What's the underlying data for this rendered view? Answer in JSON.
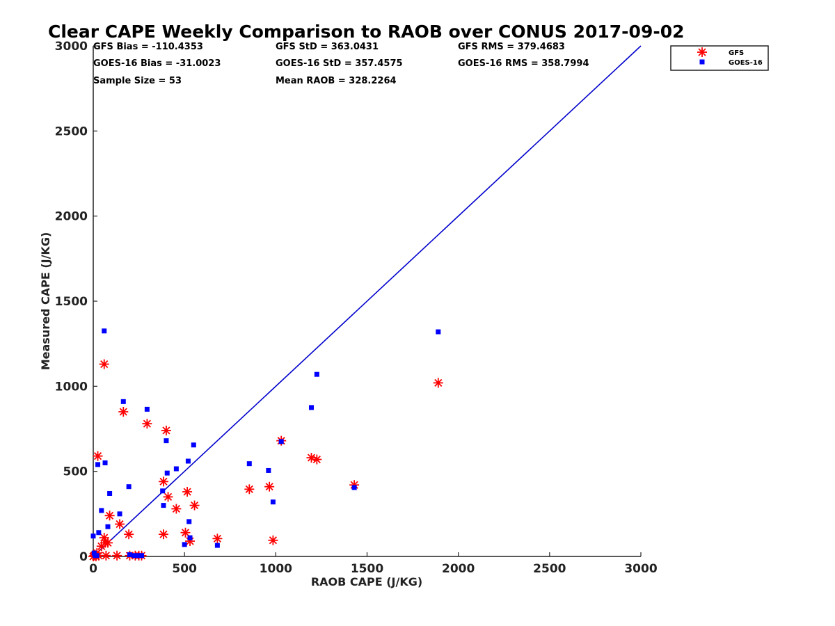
{
  "chart_data": {
    "type": "scatter",
    "title": "Clear CAPE Weekly Comparison to RAOB over CONUS 2017-09-02",
    "xlabel": "RAOB CAPE (J/KG)",
    "ylabel": "Measured CAPE (J/KG)",
    "xlim": [
      0,
      3000
    ],
    "ylim": [
      0,
      3000
    ],
    "xticks": [
      "0",
      "500",
      "1000",
      "1500",
      "2000",
      "2500",
      "3000"
    ],
    "yticks": [
      "0",
      "500",
      "1000",
      "1500",
      "2000",
      "2500",
      "3000"
    ],
    "grid": false,
    "legend_position": "top-right",
    "stats": [
      "GFS Bias = -110.4353",
      "GFS StD = 363.0431",
      "GFS RMS = 379.4683",
      "GOES-16 Bias = -31.0023",
      "GOES-16 StD = 357.4575",
      "GOES-16 RMS = 358.7994",
      "Sample Size = 53",
      "Mean RAOB = 328.2264"
    ],
    "reference_line": {
      "x": [
        0,
        3000
      ],
      "y": [
        0,
        3000
      ],
      "color": "#0000cc"
    },
    "series": [
      {
        "name": "GFS",
        "marker": "asterisk",
        "color": "#ff0000",
        "points": [
          [
            0,
            0
          ],
          [
            5,
            5
          ],
          [
            10,
            10
          ],
          [
            15,
            0
          ],
          [
            20,
            20
          ],
          [
            30,
            5
          ],
          [
            45,
            60
          ],
          [
            60,
            110
          ],
          [
            65,
            80
          ],
          [
            70,
            5
          ],
          [
            80,
            80
          ],
          [
            90,
            240
          ],
          [
            25,
            590
          ],
          [
            60,
            1130
          ],
          [
            130,
            5
          ],
          [
            145,
            190
          ],
          [
            165,
            850
          ],
          [
            195,
            130
          ],
          [
            200,
            5
          ],
          [
            230,
            5
          ],
          [
            250,
            5
          ],
          [
            265,
            5
          ],
          [
            295,
            780
          ],
          [
            385,
            440
          ],
          [
            385,
            130
          ],
          [
            400,
            740
          ],
          [
            410,
            350
          ],
          [
            455,
            280
          ],
          [
            505,
            140
          ],
          [
            515,
            380
          ],
          [
            530,
            90
          ],
          [
            555,
            300
          ],
          [
            680,
            105
          ],
          [
            855,
            395
          ],
          [
            965,
            410
          ],
          [
            985,
            95
          ],
          [
            1030,
            680
          ],
          [
            1195,
            580
          ],
          [
            1225,
            570
          ],
          [
            1430,
            420
          ],
          [
            1890,
            1020
          ]
        ]
      },
      {
        "name": "GOES-16",
        "marker": "square",
        "color": "#0000ff",
        "points": [
          [
            0,
            120
          ],
          [
            5,
            20
          ],
          [
            10,
            5
          ],
          [
            20,
            5
          ],
          [
            25,
            540
          ],
          [
            30,
            140
          ],
          [
            45,
            270
          ],
          [
            60,
            1325
          ],
          [
            65,
            550
          ],
          [
            80,
            175
          ],
          [
            90,
            370
          ],
          [
            145,
            250
          ],
          [
            165,
            910
          ],
          [
            195,
            410
          ],
          [
            200,
            10
          ],
          [
            225,
            5
          ],
          [
            245,
            5
          ],
          [
            265,
            5
          ],
          [
            295,
            865
          ],
          [
            380,
            385
          ],
          [
            385,
            300
          ],
          [
            400,
            680
          ],
          [
            405,
            490
          ],
          [
            455,
            515
          ],
          [
            500,
            70
          ],
          [
            520,
            560
          ],
          [
            525,
            205
          ],
          [
            530,
            110
          ],
          [
            550,
            655
          ],
          [
            680,
            65
          ],
          [
            855,
            545
          ],
          [
            960,
            505
          ],
          [
            985,
            320
          ],
          [
            1030,
            675
          ],
          [
            1195,
            875
          ],
          [
            1225,
            1070
          ],
          [
            1430,
            405
          ],
          [
            1890,
            1320
          ]
        ]
      }
    ]
  }
}
